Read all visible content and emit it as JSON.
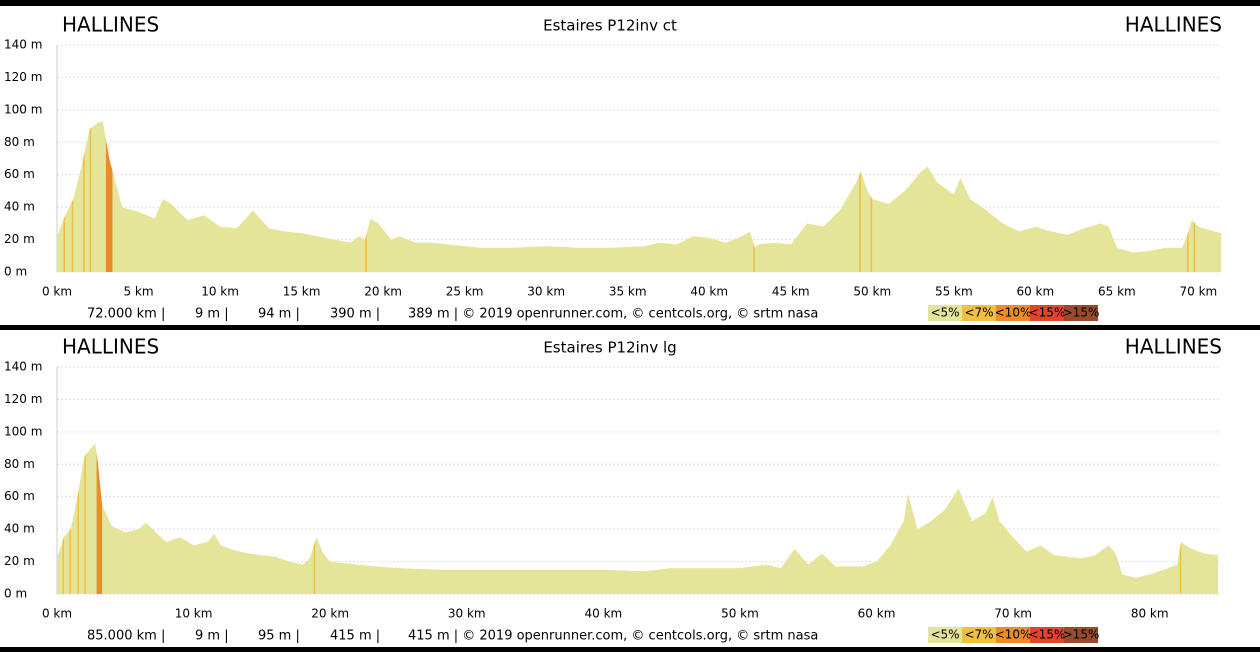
{
  "chart_data": [
    {
      "type": "area",
      "title": "Estaires P12inv ct",
      "start_label": "HALLINES",
      "end_label": "HALLINES",
      "color": "#e5e59a",
      "x": [
        0,
        0.5,
        1,
        1.5,
        2,
        2.5,
        2.8,
        3.2,
        4,
        5,
        6,
        6.5,
        7,
        8,
        9,
        10,
        11,
        11.5,
        12,
        13,
        14,
        15,
        16,
        17,
        18,
        18.5,
        18.9,
        19.2,
        19.7,
        20.5,
        21,
        22,
        23,
        25,
        26,
        28,
        30,
        32,
        34,
        36,
        37,
        38,
        39,
        40,
        41,
        42,
        42.5,
        42.8,
        43,
        44,
        45,
        46,
        47,
        48,
        49,
        49.3,
        49.7,
        50,
        51,
        52,
        53,
        53.4,
        54,
        55,
        55.4,
        56,
        57,
        58,
        59,
        60,
        61,
        62,
        63,
        64,
        64.5,
        65,
        66,
        67,
        68,
        69,
        69.3,
        69.6,
        70,
        71,
        71.4
      ],
      "values": [
        22,
        35,
        45,
        65,
        88,
        92,
        93,
        70,
        40,
        37,
        33,
        45,
        42,
        32,
        35,
        28,
        27,
        32,
        38,
        27,
        25,
        24,
        22,
        20,
        18,
        22,
        20,
        33,
        30,
        20,
        22,
        18,
        18,
        16,
        15,
        15,
        16,
        15,
        15,
        16,
        18,
        17,
        22,
        21,
        18,
        22,
        25,
        15,
        17,
        18,
        17,
        30,
        28,
        38,
        55,
        62,
        50,
        45,
        42,
        50,
        62,
        65,
        55,
        48,
        58,
        45,
        38,
        30,
        25,
        28,
        25,
        23,
        27,
        30,
        28,
        15,
        12,
        13,
        15,
        15,
        22,
        32,
        28,
        25,
        24
      ],
      "slope_bands": [
        {
          "from": 0.4,
          "to": 0.5,
          "class": 1
        },
        {
          "from": 0.9,
          "to": 1.0,
          "class": 1
        },
        {
          "from": 1.6,
          "to": 1.7,
          "class": 1
        },
        {
          "from": 2.0,
          "to": 2.1,
          "class": 1
        },
        {
          "from": 3.0,
          "to": 3.4,
          "class": 2
        },
        {
          "from": 18.9,
          "to": 19.0,
          "class": 1
        },
        {
          "from": 42.7,
          "to": 42.8,
          "class": 1
        },
        {
          "from": 49.2,
          "to": 49.3,
          "class": 1
        },
        {
          "from": 49.9,
          "to": 50.0,
          "class": 1
        },
        {
          "from": 69.3,
          "to": 69.4,
          "class": 1
        },
        {
          "from": 69.7,
          "to": 69.8,
          "class": 1
        }
      ],
      "xlim": [
        0,
        72
      ],
      "ylim": [
        0,
        140
      ],
      "xticks": [
        {
          "value": 0,
          "label": "0 km"
        },
        {
          "value": 5,
          "label": "5 km"
        },
        {
          "value": 10,
          "label": "10 km"
        },
        {
          "value": 15,
          "label": "15 km"
        },
        {
          "value": 20,
          "label": "20 km"
        },
        {
          "value": 25,
          "label": "25 km"
        },
        {
          "value": 30,
          "label": "30 km"
        },
        {
          "value": 35,
          "label": "35 km"
        },
        {
          "value": 40,
          "label": "40 km"
        },
        {
          "value": 45,
          "label": "45 km"
        },
        {
          "value": 50,
          "label": "50 km"
        },
        {
          "value": 55,
          "label": "55 km"
        },
        {
          "value": 60,
          "label": "60 km"
        },
        {
          "value": 65,
          "label": "65 km"
        },
        {
          "value": 70,
          "label": "70 km"
        }
      ],
      "yticks": [
        {
          "value": 0,
          "label": "0 m"
        },
        {
          "value": 20,
          "label": "20 m"
        },
        {
          "value": 40,
          "label": "40 m"
        },
        {
          "value": 60,
          "label": "60 m"
        },
        {
          "value": 80,
          "label": "80 m"
        },
        {
          "value": 100,
          "label": "100 m"
        },
        {
          "value": 120,
          "label": "120 m"
        },
        {
          "value": 140,
          "label": "140 m"
        }
      ],
      "grid": true,
      "stats": [
        "72.000 km |",
        "9 m |",
        "94 m |",
        "390 m |",
        "389 m | © 2019 openrunner.com, © centcols.org, © srtm nasa"
      ],
      "legend": [
        {
          "label": "<5%",
          "color": "#e5e59a"
        },
        {
          "label": "<7%",
          "color": "#f0c040"
        },
        {
          "label": "<10%",
          "color": "#ee8a2a"
        },
        {
          "label": "<15%",
          "color": "#e2452a"
        },
        {
          "label": ">15%",
          "color": "#9a4a2a"
        }
      ]
    },
    {
      "type": "area",
      "title": "Estaires P12inv lg",
      "start_label": "HALLINES",
      "end_label": "HALLINES",
      "color": "#e5e59a",
      "x": [
        0,
        0.5,
        1,
        1.5,
        2,
        2.5,
        2.8,
        3,
        3.3,
        4,
        5,
        6,
        6.5,
        7,
        8,
        9,
        10,
        11,
        11.5,
        12,
        13,
        14,
        15,
        16,
        17,
        18,
        18.5,
        19,
        19.5,
        20,
        22,
        25,
        28,
        30,
        35,
        40,
        43,
        45,
        48,
        50,
        51,
        52,
        53,
        54,
        55,
        56,
        57,
        59,
        60,
        61,
        62,
        62.3,
        63,
        64,
        65,
        66,
        67,
        68,
        68.5,
        69,
        70,
        71,
        72,
        73,
        75,
        76,
        77,
        77.5,
        78,
        79,
        80,
        81,
        82,
        82.3,
        83,
        84,
        85
      ],
      "values": [
        22,
        35,
        40,
        60,
        85,
        90,
        93,
        80,
        55,
        42,
        38,
        40,
        44,
        40,
        32,
        35,
        30,
        32,
        37,
        30,
        27,
        25,
        24,
        23,
        20,
        18,
        22,
        35,
        25,
        20,
        18,
        16,
        15,
        15,
        15,
        15,
        14,
        16,
        16,
        16,
        17,
        18,
        16,
        28,
        18,
        25,
        17,
        17,
        20,
        30,
        45,
        62,
        40,
        45,
        52,
        65,
        45,
        50,
        60,
        45,
        35,
        26,
        30,
        24,
        22,
        24,
        30,
        25,
        12,
        10,
        12,
        15,
        18,
        32,
        28,
        25,
        24
      ],
      "slope_bands": [
        {
          "from": 0.4,
          "to": 0.5,
          "class": 1
        },
        {
          "from": 0.9,
          "to": 1.0,
          "class": 1
        },
        {
          "from": 1.5,
          "to": 1.6,
          "class": 1
        },
        {
          "from": 2.0,
          "to": 2.1,
          "class": 1
        },
        {
          "from": 2.9,
          "to": 3.3,
          "class": 2
        },
        {
          "from": 18.8,
          "to": 18.9,
          "class": 1
        },
        {
          "from": 82.2,
          "to": 82.3,
          "class": 1
        }
      ],
      "xlim": [
        0,
        85
      ],
      "ylim": [
        0,
        140
      ],
      "xticks": [
        {
          "value": 0,
          "label": "0 km"
        },
        {
          "value": 10,
          "label": "10 km"
        },
        {
          "value": 20,
          "label": "20 km"
        },
        {
          "value": 30,
          "label": "30 km"
        },
        {
          "value": 40,
          "label": "40 km"
        },
        {
          "value": 50,
          "label": "50 km"
        },
        {
          "value": 60,
          "label": "60 km"
        },
        {
          "value": 70,
          "label": "70 km"
        },
        {
          "value": 80,
          "label": "80 km"
        }
      ],
      "yticks": [
        {
          "value": 0,
          "label": "0 m"
        },
        {
          "value": 20,
          "label": "20 m"
        },
        {
          "value": 40,
          "label": "40 m"
        },
        {
          "value": 60,
          "label": "60 m"
        },
        {
          "value": 80,
          "label": "80 m"
        },
        {
          "value": 100,
          "label": "100 m"
        },
        {
          "value": 120,
          "label": "120 m"
        },
        {
          "value": 140,
          "label": "140 m"
        }
      ],
      "grid": true,
      "stats": [
        "85.000 km |",
        "9 m |",
        "95 m |",
        "415 m |",
        "415 m | © 2019 openrunner.com, © centcols.org, © srtm nasa"
      ],
      "legend": [
        {
          "label": "<5%",
          "color": "#e5e59a"
        },
        {
          "label": "<7%",
          "color": "#f0c040"
        },
        {
          "label": "<10%",
          "color": "#ee8a2a"
        },
        {
          "label": "<15%",
          "color": "#e2452a"
        },
        {
          "label": ">15%",
          "color": "#9a4a2a"
        }
      ]
    }
  ]
}
